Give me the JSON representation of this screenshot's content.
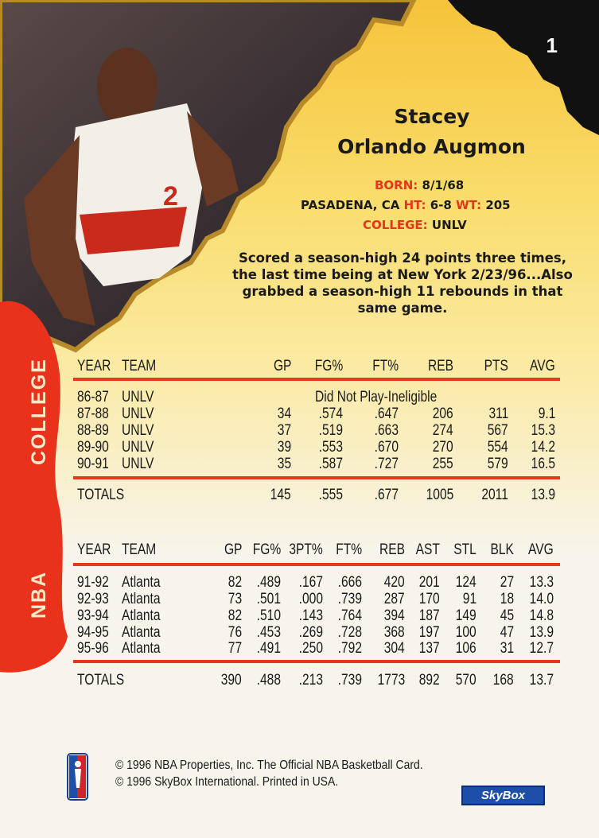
{
  "card_number": "1",
  "player": {
    "first_name": "Stacey",
    "rest_name": "Orlando Augmon"
  },
  "bio": {
    "born_label": "BORN:",
    "born_value": "8/1/68",
    "hometown": "PASADENA, CA",
    "ht_label": "HT:",
    "ht_value": "6-8",
    "wt_label": "WT:",
    "wt_value": "205",
    "college_label": "COLLEGE:",
    "college_value": "UNLV"
  },
  "blurb": "Scored a season-high 24 points three times, the last time being at New York 2/23/96...Also grabbed a season-high 11 rebounds in that same game.",
  "college": {
    "side_label": "COLLEGE",
    "headers": [
      "YEAR",
      "TEAM",
      "GP",
      "FG%",
      "FT%",
      "REB",
      "PTS",
      "AVG"
    ],
    "note_row": {
      "year": "86-87",
      "team": "UNLV",
      "note": "Did Not Play-Ineligible"
    },
    "rows": [
      [
        "87-88",
        "UNLV",
        "34",
        ".574",
        ".647",
        "206",
        "311",
        "9.1"
      ],
      [
        "88-89",
        "UNLV",
        "37",
        ".519",
        ".663",
        "274",
        "567",
        "15.3"
      ],
      [
        "89-90",
        "UNLV",
        "39",
        ".553",
        ".670",
        "270",
        "554",
        "14.2"
      ],
      [
        "90-91",
        "UNLV",
        "35",
        ".587",
        ".727",
        "255",
        "579",
        "16.5"
      ]
    ],
    "totals": [
      "TOTALS",
      "",
      "145",
      ".555",
      ".677",
      "1005",
      "2011",
      "13.9"
    ]
  },
  "nba": {
    "side_label": "NBA",
    "headers": [
      "YEAR",
      "TEAM",
      "GP",
      "FG%",
      "3PT%",
      "FT%",
      "REB",
      "AST",
      "STL",
      "BLK",
      "AVG"
    ],
    "rows": [
      [
        "91-92",
        "Atlanta",
        "82",
        ".489",
        ".167",
        ".666",
        "420",
        "201",
        "124",
        "27",
        "13.3"
      ],
      [
        "92-93",
        "Atlanta",
        "73",
        ".501",
        ".000",
        ".739",
        "287",
        "170",
        "91",
        "18",
        "14.0"
      ],
      [
        "93-94",
        "Atlanta",
        "82",
        ".510",
        ".143",
        ".764",
        "394",
        "187",
        "149",
        "45",
        "14.8"
      ],
      [
        "94-95",
        "Atlanta",
        "76",
        ".453",
        ".269",
        ".728",
        "368",
        "197",
        "100",
        "47",
        "13.9"
      ],
      [
        "95-96",
        "Atlanta",
        "77",
        ".491",
        ".250",
        ".792",
        "304",
        "137",
        "106",
        "31",
        "12.7"
      ]
    ],
    "totals": [
      "TOTALS",
      "",
      "390",
      ".488",
      ".213",
      ".739",
      "1773",
      "892",
      "570",
      "168",
      "13.7"
    ]
  },
  "footer": {
    "line1": "© 1996 NBA Properties, Inc. The Official NBA Basketball Card.",
    "line2": "© 1996 SkyBox International. Printed in USA.",
    "nba_logo_text": "NBA",
    "brand_logo_text": "SkyBox"
  },
  "colors": {
    "accent_red": "#e8361f",
    "yellow": "#f6c33a",
    "brand_blue": "#1e4fa8"
  }
}
